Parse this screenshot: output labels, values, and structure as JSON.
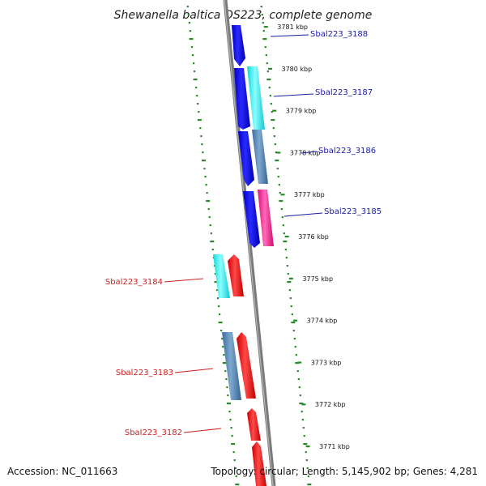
{
  "title": "Shewanella baltica OS223, complete genome",
  "accession": "Accession: NC_011663",
  "topology": "Topology: circular; Length: 5,145,902 bp; Genes: 4,281",
  "colors": {
    "backbone": "#8c8c8c",
    "gc_marks": "#2b8a2b",
    "forward_label": "#1a1aa8",
    "reverse_label": "#cc1f1f"
  },
  "ticks": [
    {
      "kbp": 3781,
      "label": "3781 kbp"
    },
    {
      "kbp": 3780,
      "label": "3780 kbp"
    },
    {
      "kbp": 3779,
      "label": "3779 kbp"
    },
    {
      "kbp": 3778,
      "label": "3778 kbp"
    },
    {
      "kbp": 3777,
      "label": "3777 kbp"
    },
    {
      "kbp": 3776,
      "label": "3776 kbp"
    },
    {
      "kbp": 3775,
      "label": "3775 kbp"
    },
    {
      "kbp": 3774,
      "label": "3774 kbp"
    },
    {
      "kbp": 3773,
      "label": "3773 kbp"
    },
    {
      "kbp": 3772,
      "label": "3772 kbp"
    },
    {
      "kbp": 3771,
      "label": "3771 kbp"
    }
  ],
  "gene_labels": [
    {
      "text": "Sbal223_3188",
      "strand": "forward"
    },
    {
      "text": "Sbal223_3187",
      "strand": "forward"
    },
    {
      "text": "Sbal223_3186",
      "strand": "forward"
    },
    {
      "text": "Sbal223_3185",
      "strand": "forward"
    },
    {
      "text": "Sbal223_3184",
      "strand": "reverse"
    },
    {
      "text": "Sbal223_3183",
      "strand": "reverse"
    },
    {
      "text": "Sbal223_3182",
      "strand": "reverse"
    }
  ]
}
